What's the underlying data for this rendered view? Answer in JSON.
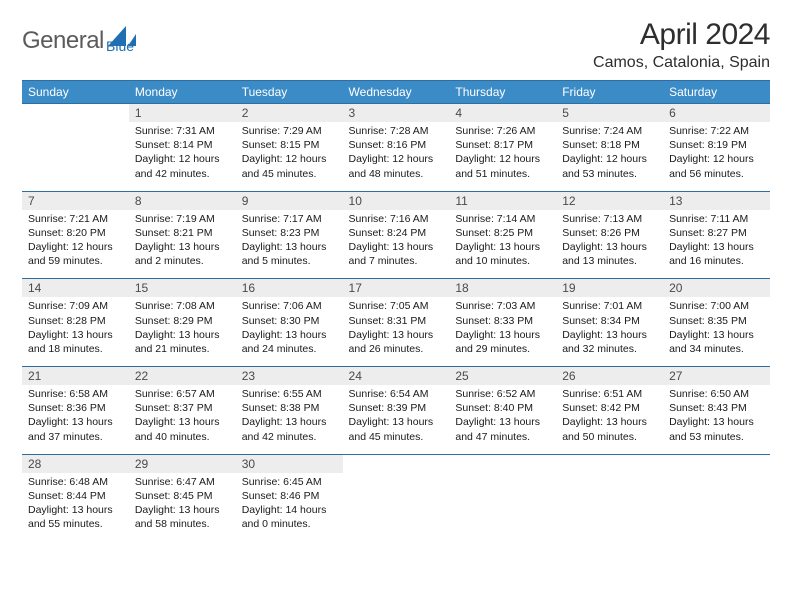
{
  "brand": {
    "part1": "General",
    "color_text": "#5b5b5b",
    "accent": "#1f6fb2"
  },
  "title": "April 2024",
  "location": "Camos, Catalonia, Spain",
  "colors": {
    "header_bg": "#3b8bc7",
    "header_text": "#ffffff",
    "daynum_bg": "#ededed",
    "rule": "#2e6ea0"
  },
  "weekdays": [
    "Sunday",
    "Monday",
    "Tuesday",
    "Wednesday",
    "Thursday",
    "Friday",
    "Saturday"
  ],
  "weeks": [
    [
      {
        "n": "",
        "lines": []
      },
      {
        "n": "1",
        "lines": [
          "Sunrise: 7:31 AM",
          "Sunset: 8:14 PM",
          "Daylight: 12 hours",
          "and 42 minutes."
        ]
      },
      {
        "n": "2",
        "lines": [
          "Sunrise: 7:29 AM",
          "Sunset: 8:15 PM",
          "Daylight: 12 hours",
          "and 45 minutes."
        ]
      },
      {
        "n": "3",
        "lines": [
          "Sunrise: 7:28 AM",
          "Sunset: 8:16 PM",
          "Daylight: 12 hours",
          "and 48 minutes."
        ]
      },
      {
        "n": "4",
        "lines": [
          "Sunrise: 7:26 AM",
          "Sunset: 8:17 PM",
          "Daylight: 12 hours",
          "and 51 minutes."
        ]
      },
      {
        "n": "5",
        "lines": [
          "Sunrise: 7:24 AM",
          "Sunset: 8:18 PM",
          "Daylight: 12 hours",
          "and 53 minutes."
        ]
      },
      {
        "n": "6",
        "lines": [
          "Sunrise: 7:22 AM",
          "Sunset: 8:19 PM",
          "Daylight: 12 hours",
          "and 56 minutes."
        ]
      }
    ],
    [
      {
        "n": "7",
        "lines": [
          "Sunrise: 7:21 AM",
          "Sunset: 8:20 PM",
          "Daylight: 12 hours",
          "and 59 minutes."
        ]
      },
      {
        "n": "8",
        "lines": [
          "Sunrise: 7:19 AM",
          "Sunset: 8:21 PM",
          "Daylight: 13 hours",
          "and 2 minutes."
        ]
      },
      {
        "n": "9",
        "lines": [
          "Sunrise: 7:17 AM",
          "Sunset: 8:23 PM",
          "Daylight: 13 hours",
          "and 5 minutes."
        ]
      },
      {
        "n": "10",
        "lines": [
          "Sunrise: 7:16 AM",
          "Sunset: 8:24 PM",
          "Daylight: 13 hours",
          "and 7 minutes."
        ]
      },
      {
        "n": "11",
        "lines": [
          "Sunrise: 7:14 AM",
          "Sunset: 8:25 PM",
          "Daylight: 13 hours",
          "and 10 minutes."
        ]
      },
      {
        "n": "12",
        "lines": [
          "Sunrise: 7:13 AM",
          "Sunset: 8:26 PM",
          "Daylight: 13 hours",
          "and 13 minutes."
        ]
      },
      {
        "n": "13",
        "lines": [
          "Sunrise: 7:11 AM",
          "Sunset: 8:27 PM",
          "Daylight: 13 hours",
          "and 16 minutes."
        ]
      }
    ],
    [
      {
        "n": "14",
        "lines": [
          "Sunrise: 7:09 AM",
          "Sunset: 8:28 PM",
          "Daylight: 13 hours",
          "and 18 minutes."
        ]
      },
      {
        "n": "15",
        "lines": [
          "Sunrise: 7:08 AM",
          "Sunset: 8:29 PM",
          "Daylight: 13 hours",
          "and 21 minutes."
        ]
      },
      {
        "n": "16",
        "lines": [
          "Sunrise: 7:06 AM",
          "Sunset: 8:30 PM",
          "Daylight: 13 hours",
          "and 24 minutes."
        ]
      },
      {
        "n": "17",
        "lines": [
          "Sunrise: 7:05 AM",
          "Sunset: 8:31 PM",
          "Daylight: 13 hours",
          "and 26 minutes."
        ]
      },
      {
        "n": "18",
        "lines": [
          "Sunrise: 7:03 AM",
          "Sunset: 8:33 PM",
          "Daylight: 13 hours",
          "and 29 minutes."
        ]
      },
      {
        "n": "19",
        "lines": [
          "Sunrise: 7:01 AM",
          "Sunset: 8:34 PM",
          "Daylight: 13 hours",
          "and 32 minutes."
        ]
      },
      {
        "n": "20",
        "lines": [
          "Sunrise: 7:00 AM",
          "Sunset: 8:35 PM",
          "Daylight: 13 hours",
          "and 34 minutes."
        ]
      }
    ],
    [
      {
        "n": "21",
        "lines": [
          "Sunrise: 6:58 AM",
          "Sunset: 8:36 PM",
          "Daylight: 13 hours",
          "and 37 minutes."
        ]
      },
      {
        "n": "22",
        "lines": [
          "Sunrise: 6:57 AM",
          "Sunset: 8:37 PM",
          "Daylight: 13 hours",
          "and 40 minutes."
        ]
      },
      {
        "n": "23",
        "lines": [
          "Sunrise: 6:55 AM",
          "Sunset: 8:38 PM",
          "Daylight: 13 hours",
          "and 42 minutes."
        ]
      },
      {
        "n": "24",
        "lines": [
          "Sunrise: 6:54 AM",
          "Sunset: 8:39 PM",
          "Daylight: 13 hours",
          "and 45 minutes."
        ]
      },
      {
        "n": "25",
        "lines": [
          "Sunrise: 6:52 AM",
          "Sunset: 8:40 PM",
          "Daylight: 13 hours",
          "and 47 minutes."
        ]
      },
      {
        "n": "26",
        "lines": [
          "Sunrise: 6:51 AM",
          "Sunset: 8:42 PM",
          "Daylight: 13 hours",
          "and 50 minutes."
        ]
      },
      {
        "n": "27",
        "lines": [
          "Sunrise: 6:50 AM",
          "Sunset: 8:43 PM",
          "Daylight: 13 hours",
          "and 53 minutes."
        ]
      }
    ],
    [
      {
        "n": "28",
        "lines": [
          "Sunrise: 6:48 AM",
          "Sunset: 8:44 PM",
          "Daylight: 13 hours",
          "and 55 minutes."
        ]
      },
      {
        "n": "29",
        "lines": [
          "Sunrise: 6:47 AM",
          "Sunset: 8:45 PM",
          "Daylight: 13 hours",
          "and 58 minutes."
        ]
      },
      {
        "n": "30",
        "lines": [
          "Sunrise: 6:45 AM",
          "Sunset: 8:46 PM",
          "Daylight: 14 hours",
          "and 0 minutes."
        ]
      },
      {
        "n": "",
        "lines": []
      },
      {
        "n": "",
        "lines": []
      },
      {
        "n": "",
        "lines": []
      },
      {
        "n": "",
        "lines": []
      }
    ]
  ]
}
